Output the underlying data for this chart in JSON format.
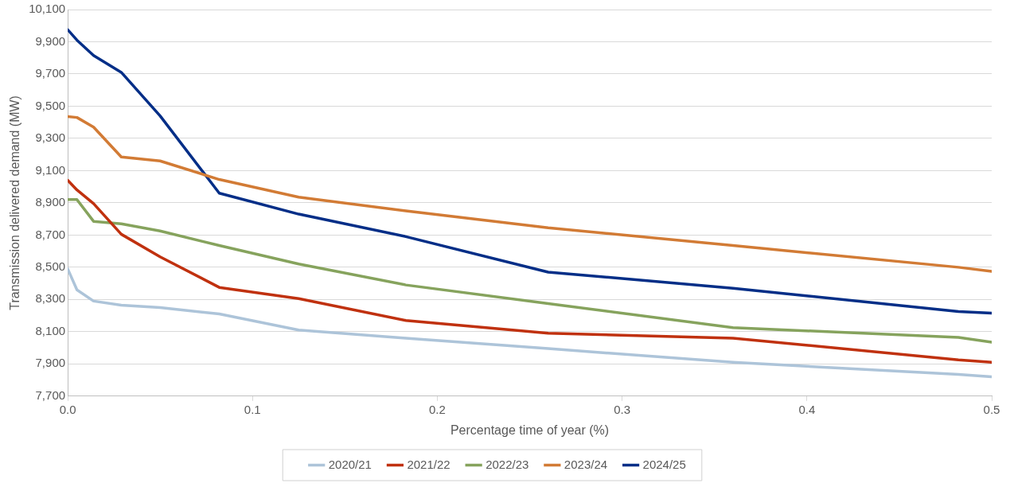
{
  "chart_data": {
    "type": "line",
    "xlabel": "Percentage time of year (%)",
    "ylabel": "Transmission delivered demand (MW)",
    "x": [
      0,
      0.005,
      0.014,
      0.029,
      0.05,
      0.082,
      0.125,
      0.183,
      0.26,
      0.36,
      0.482,
      0.5
    ],
    "series": [
      {
        "name": "2020/21",
        "color": "#adc4d9",
        "values": [
          8490,
          8360,
          8290,
          8265,
          8250,
          8210,
          8110,
          8060,
          7995,
          7910,
          7835,
          7820
        ]
      },
      {
        "name": "2021/22",
        "color": "#c0310f",
        "values": [
          9040,
          8980,
          8895,
          8705,
          8565,
          8375,
          8305,
          8170,
          8090,
          8060,
          7925,
          7910
        ]
      },
      {
        "name": "2022/23",
        "color": "#86a35d",
        "values": [
          8920,
          8920,
          8785,
          8770,
          8725,
          8635,
          8520,
          8390,
          8275,
          8125,
          8065,
          8035
        ]
      },
      {
        "name": "2023/24",
        "color": "#d27b35",
        "values": [
          9435,
          9430,
          9370,
          9185,
          9160,
          9045,
          8935,
          8850,
          8745,
          8635,
          8500,
          8475
        ]
      },
      {
        "name": "2024/25",
        "color": "#032e87",
        "values": [
          9975,
          9910,
          9815,
          9710,
          9440,
          8960,
          8830,
          8690,
          8470,
          8370,
          8225,
          8215
        ]
      }
    ],
    "xlim": [
      0,
      0.5
    ],
    "xticks": [
      {
        "value": 0,
        "label": "0.0"
      },
      {
        "value": 0.1,
        "label": "0.1"
      },
      {
        "value": 0.2,
        "label": "0.2"
      },
      {
        "value": 0.3,
        "label": "0.3"
      },
      {
        "value": 0.4,
        "label": "0.4"
      },
      {
        "value": 0.5,
        "label": "0.5"
      }
    ],
    "ylim": [
      7700,
      10100
    ],
    "yticks": [
      {
        "value": 7700,
        "label": "7,700"
      },
      {
        "value": 7900,
        "label": "7,900"
      },
      {
        "value": 8100,
        "label": "8,100"
      },
      {
        "value": 8300,
        "label": "8,300"
      },
      {
        "value": 8500,
        "label": "8,500"
      },
      {
        "value": 8700,
        "label": "8,700"
      },
      {
        "value": 8900,
        "label": "8,900"
      },
      {
        "value": 9100,
        "label": "9,100"
      },
      {
        "value": 9300,
        "label": "9,300"
      },
      {
        "value": 9500,
        "label": "9,500"
      },
      {
        "value": 9700,
        "label": "9,700"
      },
      {
        "value": 9900,
        "label": "9,900"
      },
      {
        "value": 10100,
        "label": "10,100"
      }
    ],
    "grid": "y",
    "legend": "bottom",
    "marker": "none",
    "line_style": "solid"
  }
}
